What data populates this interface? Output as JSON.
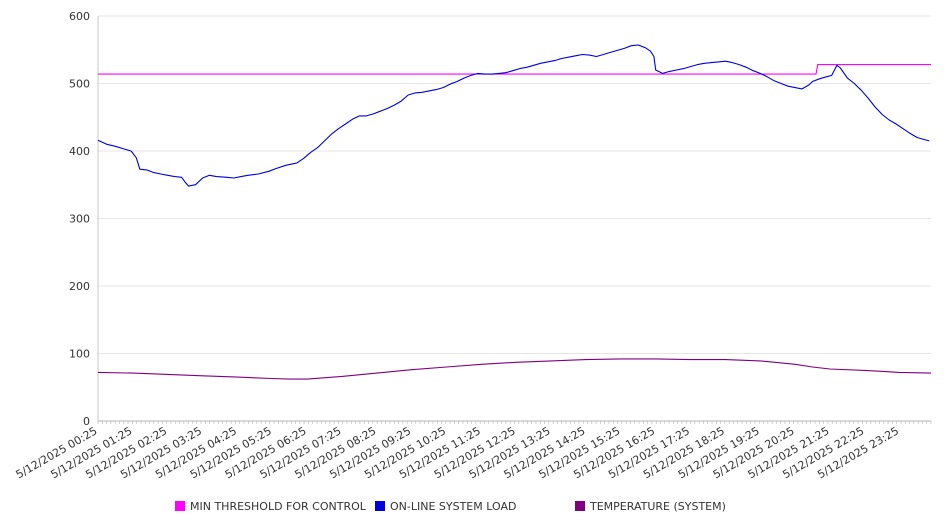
{
  "chart_data": {
    "type": "line",
    "title": "",
    "xlabel": "",
    "ylabel": "",
    "ylim": [
      0,
      600
    ],
    "yticks": [
      0,
      100,
      200,
      300,
      400,
      500,
      600
    ],
    "grid": true,
    "legend_position": "bottom",
    "x": [
      "5/12/2025 00:25",
      "5/12/2025 01:25",
      "5/12/2025 02:25",
      "5/12/2025 03:25",
      "5/12/2025 04:25",
      "5/12/2025 05:25",
      "5/12/2025 06:25",
      "5/12/2025 07:25",
      "5/12/2025 08:25",
      "5/12/2025 09:25",
      "5/12/2025 10:25",
      "5/12/2025 11:25",
      "5/12/2025 12:25",
      "5/12/2025 13:25",
      "5/12/2025 14:25",
      "5/12/2025 15:25",
      "5/12/2025 16:25",
      "5/12/2025 17:25",
      "5/12/2025 18:25",
      "5/12/2025 19:25",
      "5/12/2025 20:25",
      "5/12/2025 21:25",
      "5/12/2025 22:25",
      "5/12/2025 23:25"
    ],
    "series": [
      {
        "name": "MIN THRESHOLD FOR CONTROL",
        "color": "#ff00ff",
        "points": [
          [
            0,
            514
          ],
          [
            20.6,
            514
          ],
          [
            20.65,
            528
          ],
          [
            23.9,
            528
          ]
        ]
      },
      {
        "name": "ON-LINE SYSTEM LOAD",
        "color": "#0000dd",
        "points": [
          [
            0,
            416
          ],
          [
            0.25,
            410
          ],
          [
            0.5,
            407
          ],
          [
            0.75,
            403
          ],
          [
            0.95,
            400
          ],
          [
            1.1,
            390
          ],
          [
            1.2,
            373
          ],
          [
            1.4,
            372
          ],
          [
            1.6,
            368
          ],
          [
            1.8,
            366
          ],
          [
            2.0,
            364
          ],
          [
            2.2,
            362
          ],
          [
            2.4,
            361
          ],
          [
            2.5,
            354
          ],
          [
            2.6,
            348
          ],
          [
            2.8,
            350
          ],
          [
            3.0,
            360
          ],
          [
            3.2,
            364
          ],
          [
            3.4,
            362
          ],
          [
            3.7,
            361
          ],
          [
            3.9,
            360
          ],
          [
            4.1,
            362
          ],
          [
            4.3,
            364
          ],
          [
            4.6,
            366
          ],
          [
            4.9,
            370
          ],
          [
            5.1,
            374
          ],
          [
            5.4,
            379
          ],
          [
            5.7,
            382
          ],
          [
            5.9,
            389
          ],
          [
            6.1,
            398
          ],
          [
            6.3,
            405
          ],
          [
            6.5,
            415
          ],
          [
            6.7,
            425
          ],
          [
            6.9,
            433
          ],
          [
            7.1,
            440
          ],
          [
            7.3,
            447
          ],
          [
            7.5,
            452
          ],
          [
            7.7,
            452
          ],
          [
            7.9,
            455
          ],
          [
            8.1,
            459
          ],
          [
            8.3,
            463
          ],
          [
            8.5,
            468
          ],
          [
            8.7,
            474
          ],
          [
            8.9,
            483
          ],
          [
            9.1,
            486
          ],
          [
            9.3,
            487
          ],
          [
            9.5,
            489
          ],
          [
            9.7,
            491
          ],
          [
            9.9,
            494
          ],
          [
            10.1,
            499
          ],
          [
            10.3,
            503
          ],
          [
            10.5,
            508
          ],
          [
            10.7,
            512
          ],
          [
            10.9,
            515
          ],
          [
            11.1,
            514
          ],
          [
            11.3,
            514
          ],
          [
            11.5,
            515
          ],
          [
            11.7,
            516
          ],
          [
            11.9,
            519
          ],
          [
            12.1,
            522
          ],
          [
            12.3,
            524
          ],
          [
            12.5,
            527
          ],
          [
            12.7,
            530
          ],
          [
            12.9,
            532
          ],
          [
            13.1,
            534
          ],
          [
            13.3,
            537
          ],
          [
            13.5,
            539
          ],
          [
            13.7,
            541
          ],
          [
            13.9,
            543
          ],
          [
            14.1,
            542
          ],
          [
            14.3,
            540
          ],
          [
            14.5,
            543
          ],
          [
            14.7,
            546
          ],
          [
            14.9,
            549
          ],
          [
            15.1,
            552
          ],
          [
            15.3,
            556
          ],
          [
            15.5,
            557
          ],
          [
            15.7,
            553
          ],
          [
            15.85,
            548
          ],
          [
            15.95,
            540
          ],
          [
            16.0,
            520
          ],
          [
            16.2,
            515
          ],
          [
            16.4,
            518
          ],
          [
            16.6,
            520
          ],
          [
            16.8,
            522
          ],
          [
            17.0,
            525
          ],
          [
            17.2,
            528
          ],
          [
            17.4,
            530
          ],
          [
            17.6,
            531
          ],
          [
            17.8,
            532
          ],
          [
            18.0,
            533
          ],
          [
            18.2,
            531
          ],
          [
            18.4,
            528
          ],
          [
            18.6,
            524
          ],
          [
            18.8,
            519
          ],
          [
            19.0,
            515
          ],
          [
            19.2,
            510
          ],
          [
            19.4,
            504
          ],
          [
            19.6,
            500
          ],
          [
            19.8,
            496
          ],
          [
            20.0,
            494
          ],
          [
            20.2,
            492
          ],
          [
            20.4,
            498
          ],
          [
            20.5,
            503
          ],
          [
            20.7,
            507
          ],
          [
            20.9,
            510
          ],
          [
            21.05,
            512
          ],
          [
            21.2,
            527
          ],
          [
            21.3,
            523
          ],
          [
            21.5,
            508
          ],
          [
            21.7,
            500
          ],
          [
            21.9,
            490
          ],
          [
            22.1,
            478
          ],
          [
            22.3,
            465
          ],
          [
            22.5,
            454
          ],
          [
            22.7,
            446
          ],
          [
            22.9,
            440
          ],
          [
            23.1,
            433
          ],
          [
            23.3,
            426
          ],
          [
            23.5,
            420
          ],
          [
            23.7,
            417
          ],
          [
            23.85,
            415
          ]
        ]
      },
      {
        "name": "TEMPERATURE (SYSTEM)",
        "color": "#800080",
        "points": [
          [
            0,
            72
          ],
          [
            1,
            71
          ],
          [
            2,
            69
          ],
          [
            3,
            67
          ],
          [
            4,
            65
          ],
          [
            5,
            63
          ],
          [
            5.5,
            62
          ],
          [
            6,
            62
          ],
          [
            7,
            66
          ],
          [
            8,
            71
          ],
          [
            9,
            76
          ],
          [
            10,
            80
          ],
          [
            11,
            84
          ],
          [
            12,
            87
          ],
          [
            13,
            89
          ],
          [
            14,
            91
          ],
          [
            15,
            92
          ],
          [
            16,
            92
          ],
          [
            17,
            91
          ],
          [
            18,
            91
          ],
          [
            19,
            89
          ],
          [
            20,
            84
          ],
          [
            20.5,
            80
          ],
          [
            21,
            77
          ],
          [
            22,
            75
          ],
          [
            23,
            72
          ],
          [
            23.9,
            71
          ]
        ]
      }
    ]
  }
}
